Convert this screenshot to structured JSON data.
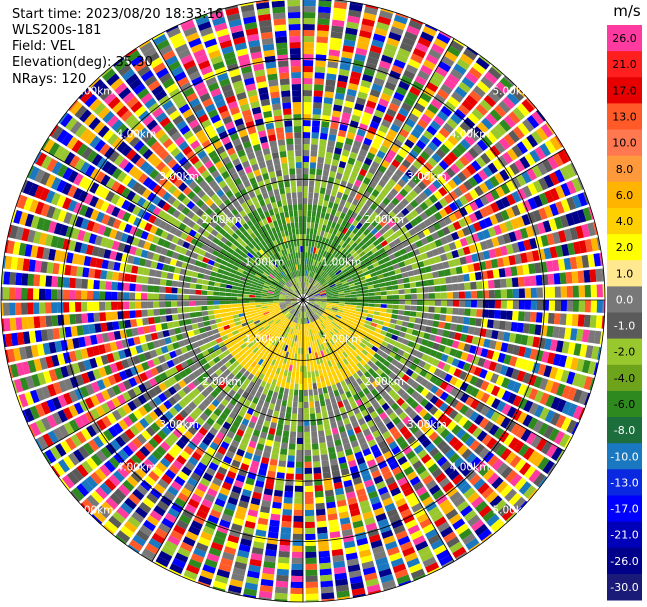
{
  "header": {
    "start_time": "Start time: 2023/08/20 18:33:16",
    "instrument": "WLS200s-181",
    "field": "Field: VEL",
    "elevation": "Elevation(deg): 35.30",
    "nrays": "NRays: 120"
  },
  "chart_data": {
    "type": "heatmap",
    "projection": "polar PPI",
    "field": "VEL",
    "units": "m/s",
    "elevation_deg": 35.3,
    "n_rays": 120,
    "range_rings_km": [
      1,
      2,
      3,
      4,
      5
    ],
    "range_ring_labels": [
      "1.00km",
      "2.00km",
      "3.00km",
      "4.00km",
      "5.00km"
    ],
    "radial_lines": 12,
    "colorbar": {
      "label": "m/s",
      "tick_labels": [
        "26.0",
        "21.0",
        "17.0",
        "13.0",
        "10.0",
        "8.0",
        "6.0",
        "4.0",
        "2.0",
        "1.0",
        "0.0",
        "-1.0",
        "-2.0",
        "-4.0",
        "-6.0",
        "-8.0",
        "-10.0",
        "-13.0",
        "-17.0",
        "-21.0",
        "-26.0",
        "-30.0"
      ],
      "colors": [
        "#ff3aa0",
        "#ff1f1f",
        "#e60000",
        "#ff5a28",
        "#ff7850",
        "#ff9a3c",
        "#ffb400",
        "#ffd000",
        "#ffff00",
        "#ffe890",
        "#787878",
        "#5a5a5a",
        "#98c82e",
        "#6ea41c",
        "#2e8a1e",
        "#1c6e3c",
        "#1a78c0",
        "#0a28e0",
        "#0000ff",
        "#0000b8",
        "#00008a",
        "#1a1a78"
      ]
    },
    "near_field": {
      "description_colors": {
        "north": "#2e8a1e",
        "south": "#ffd000",
        "ring": "#98c82e",
        "gap": "#787878"
      }
    },
    "far_field_noise_palette": [
      "#ff3aa0",
      "#e60000",
      "#ff5a28",
      "#ffb400",
      "#ffff00",
      "#98c82e",
      "#2e8a1e",
      "#1a78c0",
      "#0000ff",
      "#00008a",
      "#787878",
      "#5a5a5a"
    ]
  }
}
